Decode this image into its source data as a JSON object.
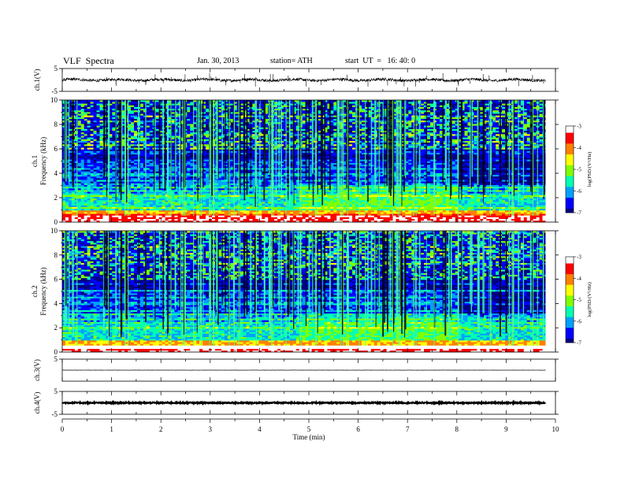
{
  "header": {
    "title": "VLF  Spectra",
    "date": "Jan. 30, 2013",
    "station": "station= ATH",
    "start": "start  UT  =   16: 40: 0"
  },
  "colorbar": {
    "ticks": [
      "-3",
      "-4",
      "-5",
      "-6",
      "-7"
    ],
    "label": "log(PSD/(V²/Hz)",
    "colors": [
      "#000080",
      "#0000ff",
      "#00a0ff",
      "#00ffb0",
      "#80ff00",
      "#ffff00",
      "#ff8000",
      "#ff0000",
      "#ffffff"
    ]
  },
  "chart_data": [
    {
      "type": "line",
      "panel": "ch1-waveform",
      "ylabel": "ch.1(V)",
      "ylim": [
        -5,
        5
      ],
      "yticks": [
        "5",
        "-5"
      ],
      "baseline": 0,
      "noise": 0.6,
      "x_range": [
        0,
        9.8
      ]
    },
    {
      "type": "heatmap",
      "panel": "ch1-spectrogram",
      "ylabel": "ch.1",
      "ylabel2": "Frequency  (kHz)",
      "ylim": [
        0,
        10
      ],
      "yticks": [
        "0",
        "2",
        "4",
        "6",
        "8",
        "10"
      ],
      "x_range": [
        0,
        9.8
      ],
      "zlim": [
        -7,
        -3
      ]
    },
    {
      "type": "heatmap",
      "panel": "ch2-spectrogram",
      "ylabel": "ch.2",
      "ylabel2": "Frequency  (kHz)",
      "ylim": [
        0,
        10
      ],
      "yticks": [
        "0",
        "2",
        "4",
        "6",
        "8",
        "10"
      ],
      "x_range": [
        0,
        9.8
      ],
      "zlim": [
        -7,
        -3
      ]
    },
    {
      "type": "line",
      "panel": "ch3-waveform",
      "ylabel": "ch.3(V)",
      "ylim": [
        -5,
        5
      ],
      "yticks": [
        "5"
      ],
      "baseline": 0,
      "noise": 0.05,
      "x_range": [
        0,
        9.8
      ]
    },
    {
      "type": "line",
      "panel": "ch4-waveform",
      "ylabel": "ch.4(V)",
      "ylim": [
        -5,
        5
      ],
      "yticks": [
        "5",
        "-5"
      ],
      "baseline": 0,
      "noise": 0.25,
      "x_range": [
        0,
        9.8
      ]
    }
  ],
  "xaxis": {
    "label": "Time  (min)",
    "ticks": [
      "0",
      "1",
      "2",
      "3",
      "4",
      "5",
      "6",
      "7",
      "8",
      "9",
      "10"
    ],
    "xlim": [
      0,
      10
    ]
  }
}
